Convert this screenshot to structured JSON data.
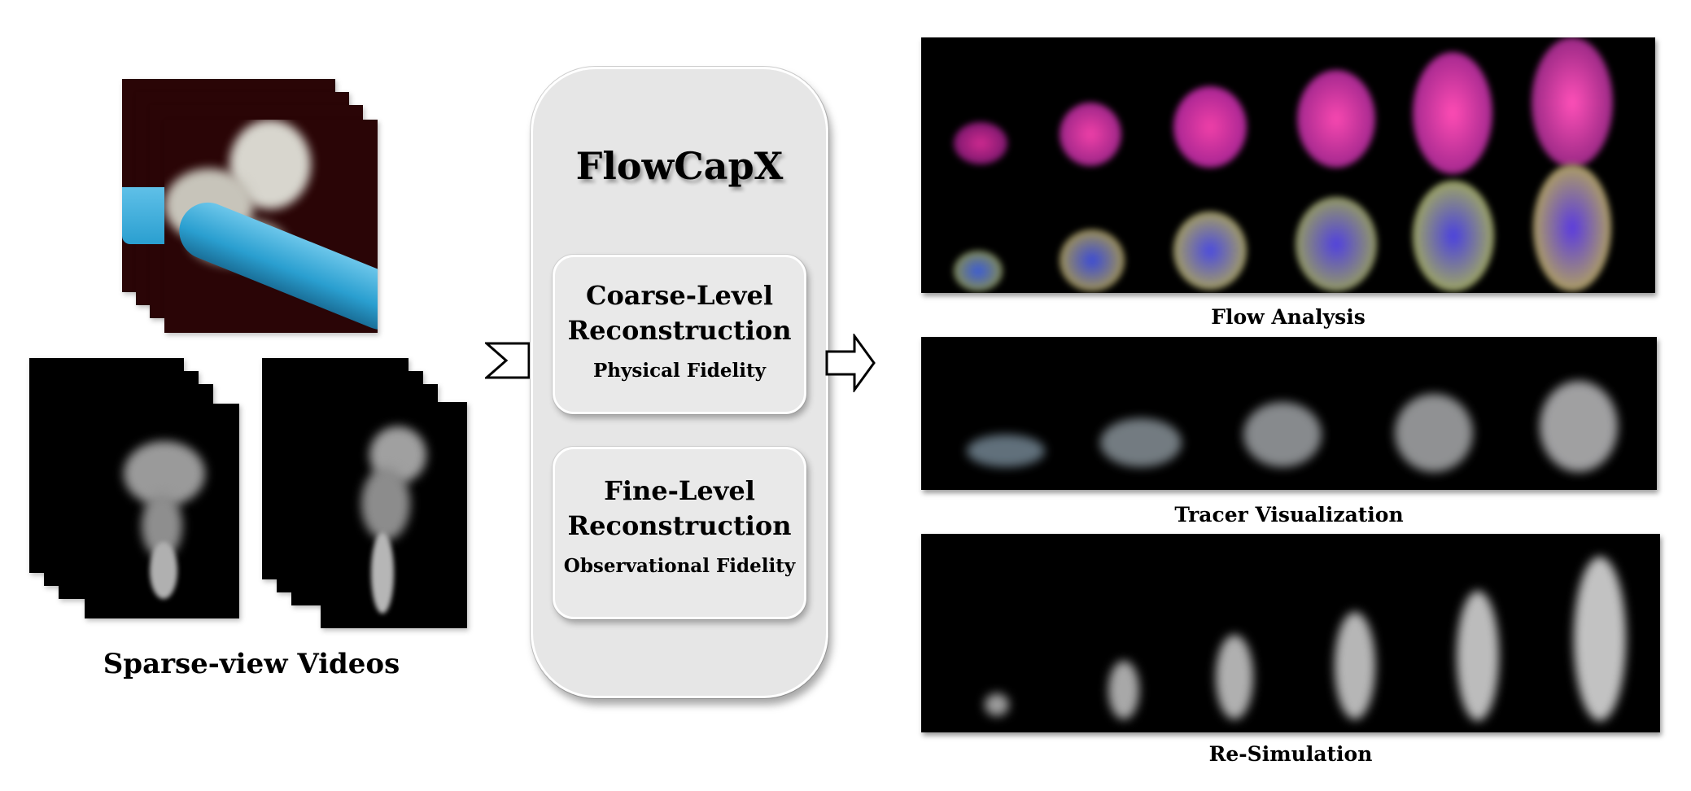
{
  "inputs": {
    "caption": "Sparse-view Videos"
  },
  "method": {
    "title": "FlowCapX",
    "coarse": {
      "heading_line1": "Coarse-Level",
      "heading_line2": "Reconstruction",
      "subtitle": "Physical Fidelity"
    },
    "fine": {
      "heading_line1": "Fine-Level",
      "heading_line2": "Reconstruction",
      "subtitle": "Observational Fidelity"
    }
  },
  "outputs": {
    "flow_analysis": "Flow Analysis",
    "tracer_visualization": "Tracer Visualization",
    "re_simulation": "Re-Simulation"
  },
  "colors": {
    "panel_gray": "#e6e6e6",
    "video_red_bg": "#2a0506",
    "cylinder_blue": "#2a9fd0",
    "flow_magenta": "#e0309a"
  }
}
